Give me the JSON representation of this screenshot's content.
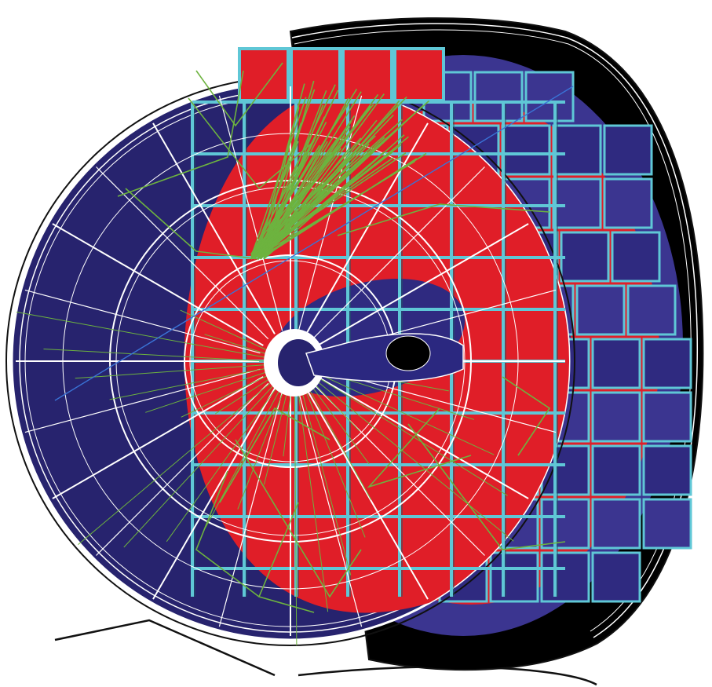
{
  "scene": {
    "palette": {
      "background": "#ffffff",
      "back_shell": "#000000",
      "navy": "#27236e",
      "navy_light": "#3b3590",
      "red": "#e01e28",
      "cyan": "#5fc7d6",
      "green": "#6db33f",
      "wire": "#ffffff",
      "outline": "#111111",
      "blue_line": "#3a73d6"
    },
    "icons": {
      "detector": "detector-disk-icon",
      "tracks": "particle-shower-icon"
    }
  }
}
